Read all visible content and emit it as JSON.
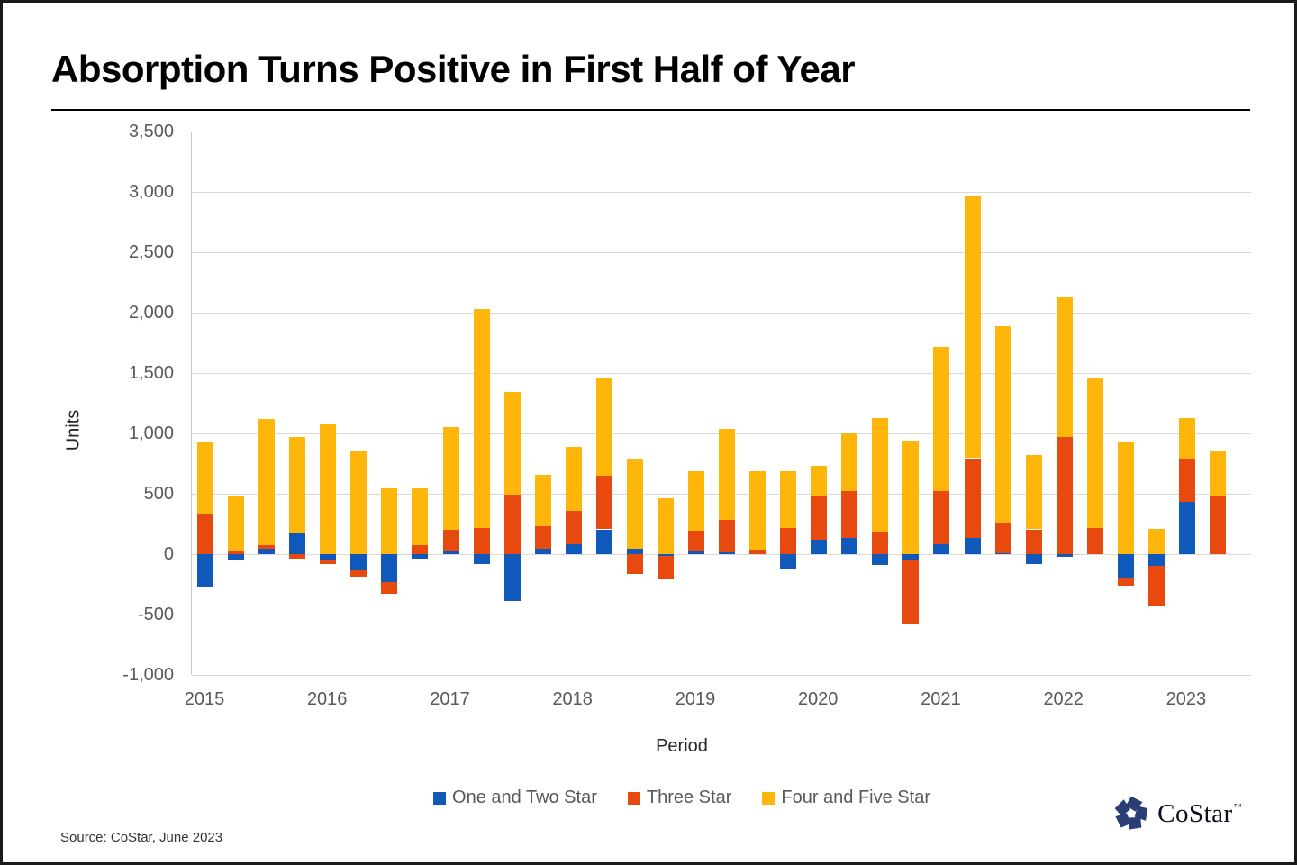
{
  "page": {
    "source": "Source: CoStar, June 2023",
    "logo_text": "CoStar",
    "logo_tm": "™"
  },
  "chart_data": {
    "type": "bar",
    "stacked": true,
    "title": "Absorption Turns Positive in First Half of Year",
    "xlabel": "Period",
    "ylabel": "Units",
    "ylim": [
      -1000,
      3500
    ],
    "ytick_interval": 500,
    "ytick_labels": [
      "3,500",
      "3,000",
      "2,500",
      "2,000",
      "1,500",
      "1,000",
      "500",
      "0",
      "-500",
      "-1,000"
    ],
    "grid": true,
    "legend_position": "bottom",
    "x_year_labels": [
      "2015",
      "2016",
      "2017",
      "2018",
      "2019",
      "2020",
      "2021",
      "2022",
      "2023"
    ],
    "quarters_per_year": [
      4,
      4,
      4,
      4,
      4,
      4,
      4,
      4,
      2
    ],
    "categories": [
      "2015 Q1",
      "2015 Q2",
      "2015 Q3",
      "2015 Q4",
      "2016 Q1",
      "2016 Q2",
      "2016 Q3",
      "2016 Q4",
      "2017 Q1",
      "2017 Q2",
      "2017 Q3",
      "2017 Q4",
      "2018 Q1",
      "2018 Q2",
      "2018 Q3",
      "2018 Q4",
      "2019 Q1",
      "2019 Q2",
      "2019 Q3",
      "2019 Q4",
      "2020 Q1",
      "2020 Q2",
      "2020 Q3",
      "2020 Q4",
      "2021 Q1",
      "2021 Q2",
      "2021 Q3",
      "2021 Q4",
      "2022 Q1",
      "2022 Q2",
      "2022 Q3",
      "2022 Q4",
      "2023 Q1",
      "2023 Q2"
    ],
    "series": [
      {
        "name": "One and Two Star",
        "color": "#1058BA",
        "values": [
          -275,
          -55,
          45,
          180,
          -50,
          -135,
          -230,
          -40,
          30,
          -85,
          -390,
          45,
          85,
          205,
          45,
          -15,
          20,
          15,
          0,
          -120,
          120,
          135,
          -90,
          -45,
          80,
          135,
          10,
          -80,
          -20,
          0,
          -200,
          -100,
          430,
          0
        ]
      },
      {
        "name": "Three Star",
        "color": "#E8490F",
        "values": [
          335,
          20,
          30,
          -40,
          -30,
          -55,
          -100,
          75,
          170,
          215,
          490,
          185,
          270,
          445,
          -165,
          -195,
          175,
          270,
          40,
          220,
          365,
          390,
          190,
          -535,
          445,
          660,
          250,
          205,
          970,
          220,
          -65,
          -330,
          360,
          480
        ]
      },
      {
        "name": "Four and Five Star",
        "color": "#FFB60A",
        "values": [
          600,
          455,
          1045,
          790,
          1075,
          850,
          545,
          470,
          850,
          1815,
          850,
          425,
          530,
          810,
          745,
          460,
          490,
          755,
          645,
          470,
          250,
          475,
          940,
          940,
          1195,
          2165,
          1630,
          615,
          1160,
          1240,
          935,
          210,
          340,
          380
        ]
      }
    ]
  }
}
